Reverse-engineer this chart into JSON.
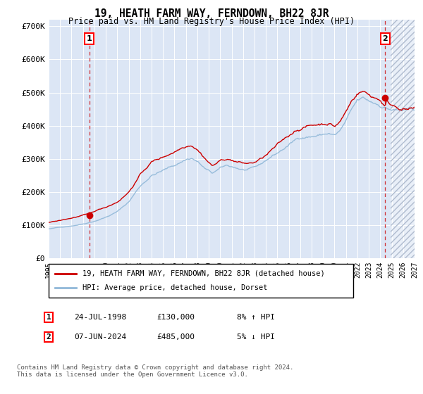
{
  "title": "19, HEATH FARM WAY, FERNDOWN, BH22 8JR",
  "subtitle": "Price paid vs. HM Land Registry's House Price Index (HPI)",
  "legend_line1": "19, HEATH FARM WAY, FERNDOWN, BH22 8JR (detached house)",
  "legend_line2": "HPI: Average price, detached house, Dorset",
  "annotation1_label": "1",
  "annotation1_date": "24-JUL-1998",
  "annotation1_price": "£130,000",
  "annotation1_hpi": "8% ↑ HPI",
  "annotation2_label": "2",
  "annotation2_date": "07-JUN-2024",
  "annotation2_price": "£485,000",
  "annotation2_hpi": "5% ↓ HPI",
  "footer": "Contains HM Land Registry data © Crown copyright and database right 2024.\nThis data is licensed under the Open Government Licence v3.0.",
  "plot_bg_color": "#dce6f5",
  "red_line_color": "#cc0000",
  "blue_line_color": "#90b8d8",
  "sale1_x": 1998.56,
  "sale1_y": 130000,
  "sale2_x": 2024.44,
  "sale2_y": 485000,
  "ylim": [
    0,
    720000
  ],
  "xlim_start": 1995.0,
  "xlim_end": 2027.0,
  "yticks": [
    0,
    100000,
    200000,
    300000,
    400000,
    500000,
    600000,
    700000
  ],
  "ytick_labels": [
    "£0",
    "£100K",
    "£200K",
    "£300K",
    "£400K",
    "£500K",
    "£600K",
    "£700K"
  ]
}
